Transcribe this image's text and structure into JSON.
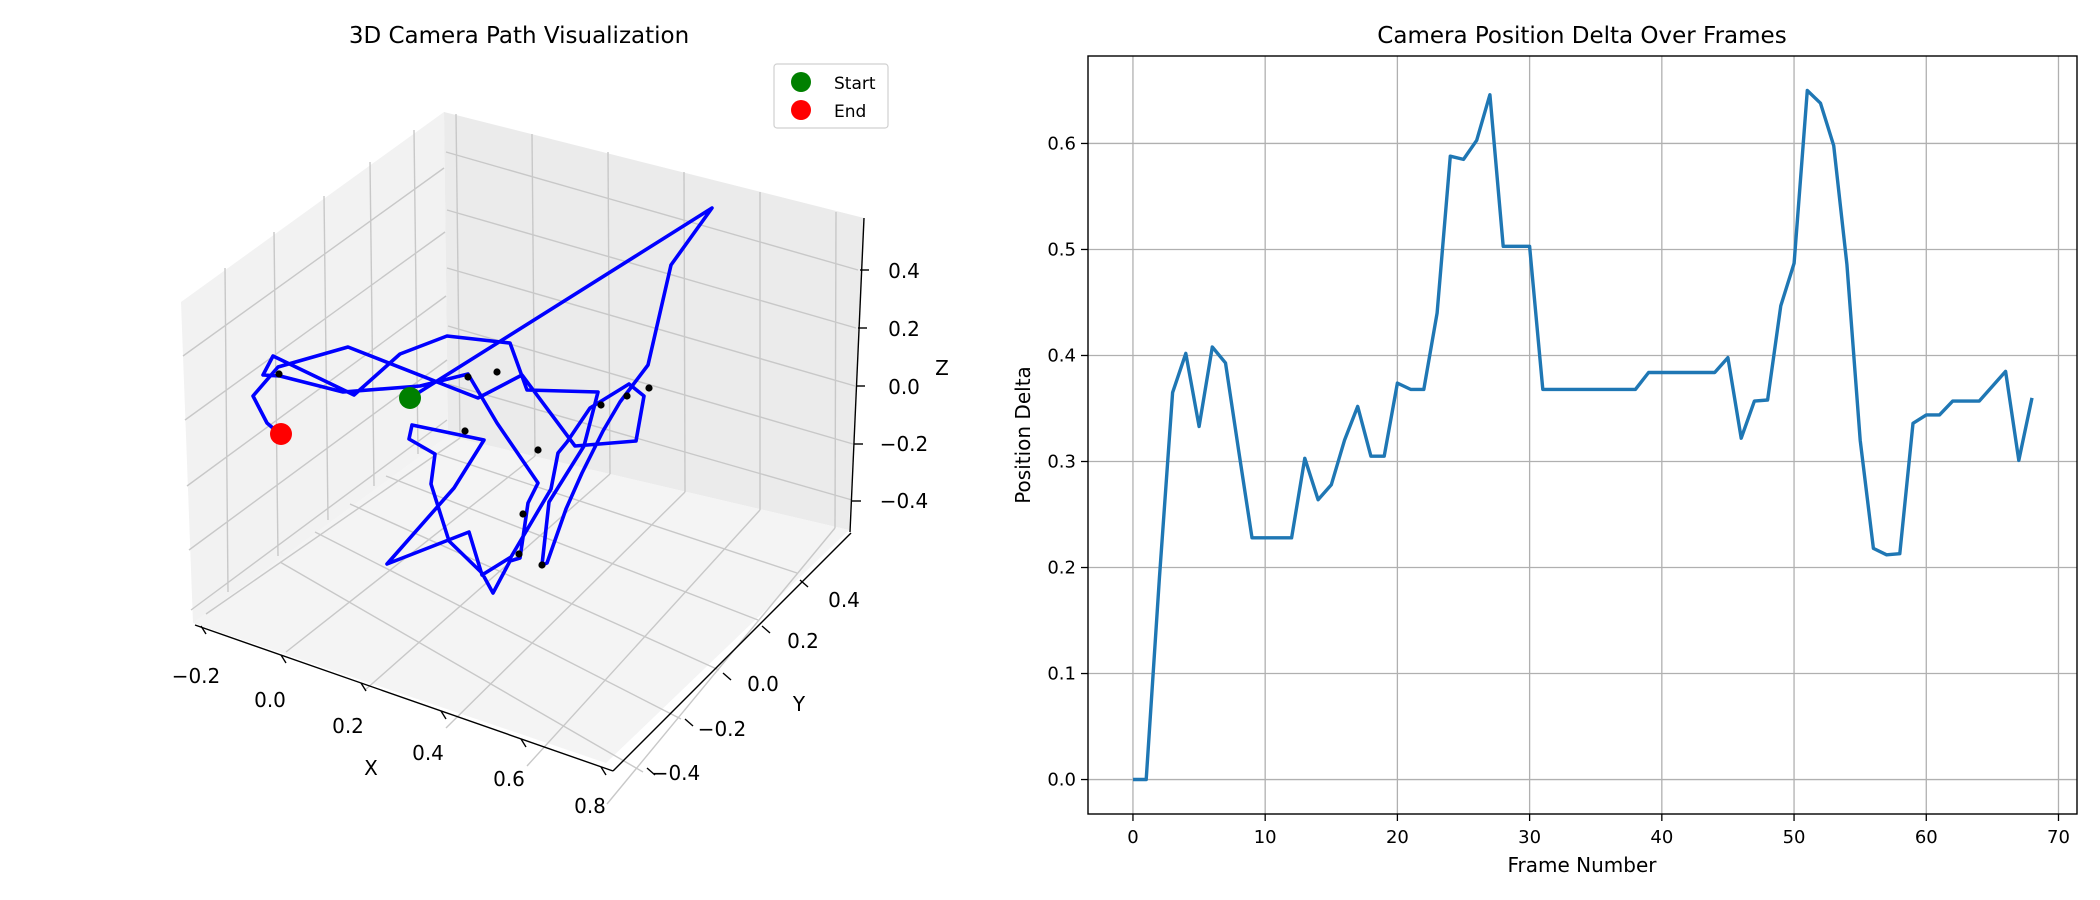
{
  "chart_data": [
    {
      "type": "line",
      "title": "3D Camera Path Visualization",
      "xlabel": "X",
      "ylabel": "Y",
      "zlabel": "Z",
      "x_ticks": [
        "−0.2",
        "0.0",
        "0.2",
        "0.4",
        "0.6",
        "0.8"
      ],
      "y_ticks": [
        "−0.4",
        "−0.2",
        "0.0",
        "0.2",
        "0.4"
      ],
      "z_ticks": [
        "−0.4",
        "−0.2",
        "0.0",
        "0.2",
        "0.4"
      ],
      "legend": {
        "placement": "top-right",
        "entries": [
          {
            "label": "Start",
            "color": "#008000"
          },
          {
            "label": "End",
            "color": "#ff0000"
          }
        ]
      },
      "path_color": "#0000ff",
      "keyframe_color": "#000000",
      "grid": true
    },
    {
      "type": "line",
      "title": "Camera Position Delta Over Frames",
      "xlabel": "Frame Number",
      "ylabel": "Position Delta",
      "xlim": [
        -3.4,
        71.4
      ],
      "ylim": [
        -0.0325,
        0.6825
      ],
      "x_ticks": [
        0,
        10,
        20,
        30,
        40,
        50,
        60,
        70
      ],
      "y_ticks": [
        0.0,
        0.1,
        0.2,
        0.3,
        0.4,
        0.5,
        0.6
      ],
      "y_tick_labels": [
        "0.0",
        "0.1",
        "0.2",
        "0.3",
        "0.4",
        "0.5",
        "0.6"
      ],
      "grid": true,
      "line_color": "#1f77b4",
      "series": [
        {
          "x": [
            0,
            1,
            2,
            3,
            4,
            5,
            6,
            7,
            8,
            9,
            10,
            11,
            12,
            13,
            14,
            15,
            16,
            17,
            18,
            19,
            20,
            21,
            22,
            23,
            24,
            25,
            26,
            27,
            28,
            29,
            30,
            31,
            32,
            33,
            34,
            35,
            36,
            37,
            38,
            39,
            40,
            41,
            42,
            43,
            44,
            45,
            46,
            47,
            48,
            49,
            50,
            51,
            52,
            53,
            54,
            55,
            56,
            57,
            58,
            59,
            60,
            61,
            62,
            63,
            64,
            65,
            66,
            67,
            68
          ],
          "values": [
            0.0,
            0.0,
            0.19,
            0.365,
            0.402,
            0.333,
            0.408,
            0.393,
            0.31,
            0.228,
            0.228,
            0.228,
            0.228,
            0.303,
            0.264,
            0.278,
            0.32,
            0.352,
            0.305,
            0.305,
            0.374,
            0.368,
            0.368,
            0.44,
            0.588,
            0.585,
            0.603,
            0.646,
            0.503,
            0.503,
            0.503,
            0.368,
            0.368,
            0.368,
            0.368,
            0.368,
            0.368,
            0.368,
            0.368,
            0.384,
            0.384,
            0.384,
            0.384,
            0.384,
            0.384,
            0.398,
            0.322,
            0.357,
            0.358,
            0.447,
            0.487,
            0.65,
            0.638,
            0.598,
            0.486,
            0.32,
            0.218,
            0.212,
            0.213,
            0.336,
            0.344,
            0.344,
            0.357,
            0.357,
            0.357,
            0.371,
            0.385,
            0.301,
            0.36
          ]
        }
      ]
    }
  ]
}
